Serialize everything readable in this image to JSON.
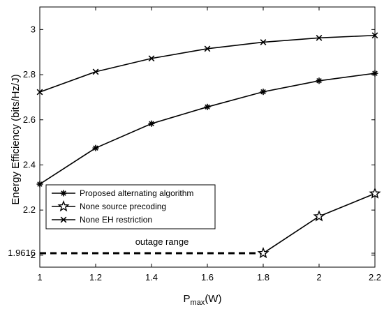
{
  "chart_data": {
    "type": "line",
    "title": "",
    "xlabel_main": "P",
    "xlabel_sub": "max",
    "xlabel_unit": "(W)",
    "ylabel": "Energy Efficiency (bits/Hz/J)",
    "xlim": [
      1,
      2.2
    ],
    "ylim": [
      1.9616,
      3.1
    ],
    "xticks": [
      1,
      1.2,
      1.4,
      1.6,
      1.8,
      2,
      2.2
    ],
    "xtick_labels": [
      "1",
      "1.2",
      "1.4",
      "1.6",
      "1.8",
      "2",
      "2.2"
    ],
    "yticks": [
      1.9616,
      2,
      2.2,
      2.4,
      2.6,
      2.8,
      3
    ],
    "ytick_labels": [
      "1.9616",
      "2",
      "2.2",
      "2.4",
      "2.6",
      "2.8",
      "3"
    ],
    "grid": false,
    "legend_position": "lower-left",
    "x": [
      1,
      1.2,
      1.4,
      1.6,
      1.8,
      2,
      2.2
    ],
    "series": [
      {
        "name": "Proposed alternating algorithm",
        "marker": "asterisk",
        "values": [
          2.315,
          2.475,
          2.583,
          2.657,
          2.724,
          2.773,
          2.806
        ]
      },
      {
        "name": "None source precoding",
        "marker": "star",
        "x": [
          1.8,
          2,
          2.2
        ],
        "values": [
          1.9616,
          2.172,
          2.273
        ]
      },
      {
        "name": "None EH restriction",
        "marker": "x",
        "values": [
          2.723,
          2.813,
          2.872,
          2.915,
          2.944,
          2.963,
          2.974
        ]
      }
    ],
    "annotations": [
      {
        "text": "outage range",
        "style": "dashed",
        "x_range": [
          1,
          1.8
        ],
        "y": 1.9616
      }
    ],
    "colors": {
      "line": "#000000",
      "background": "#ffffff"
    }
  }
}
